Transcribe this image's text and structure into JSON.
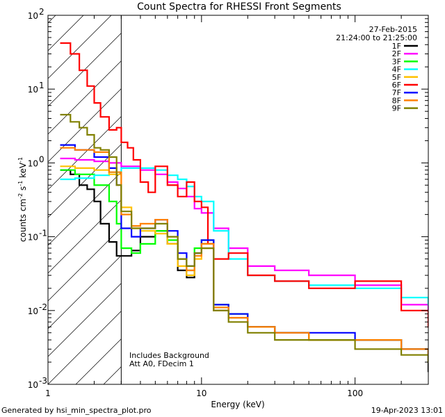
{
  "chart_data": {
    "type": "line",
    "title": "Count Spectra for RHESSI Front Segments",
    "xlabel": "Energy (keV)",
    "ylabel": {
      "base": "counts cm",
      "exp1": "-2",
      "mid": " s",
      "exp2": "-1",
      "unit": " keV",
      "exp3": "-1"
    },
    "xscale": "log",
    "yscale": "log",
    "xlim": [
      1,
      300
    ],
    "ylim": [
      0.001,
      100
    ],
    "x_major_ticks": [
      {
        "v": 1,
        "label": "1"
      },
      {
        "v": 10,
        "label": "10"
      },
      {
        "v": 100,
        "label": "100"
      }
    ],
    "y_major_ticks": [
      {
        "v": 0.001,
        "base": "10",
        "exp": "-3"
      },
      {
        "v": 0.01,
        "base": "10",
        "exp": "-2"
      },
      {
        "v": 0.1,
        "base": "10",
        "exp": "-1"
      },
      {
        "v": 1,
        "base": "10",
        "exp": "0"
      },
      {
        "v": 10,
        "base": "10",
        "exp": "1"
      },
      {
        "v": 100,
        "base": "10",
        "exp": "2"
      }
    ],
    "hatch_region_kev": [
      1,
      3
    ],
    "date": "27-Feb-2015",
    "time_range": "21:24:00 to 21:25:00",
    "annotations": [
      "Includes Background",
      "Att A0, FDecim 1"
    ],
    "legend_position": "top-right",
    "series": [
      {
        "name": "1F",
        "color": "#000000",
        "x": [
          1.2,
          1.4,
          1.6,
          1.8,
          2.0,
          2.2,
          2.5,
          2.8,
          3.0,
          3.5,
          4,
          5,
          6,
          7,
          8,
          9,
          10,
          12,
          15,
          20,
          30,
          50,
          100,
          200,
          300
        ],
        "y": [
          0.8,
          0.7,
          0.5,
          0.44,
          0.3,
          0.15,
          0.085,
          0.055,
          0.055,
          0.065,
          0.1,
          0.12,
          0.08,
          0.035,
          0.028,
          0.06,
          0.08,
          0.01,
          0.008,
          0.006,
          0.005,
          0.004,
          0.004,
          0.003,
          0.0015
        ]
      },
      {
        "name": "2F",
        "color": "#ff00ff",
        "x": [
          1.2,
          1.5,
          2.0,
          2.5,
          3.0,
          4,
          5,
          6,
          7,
          8,
          9,
          10,
          12,
          15,
          20,
          30,
          50,
          100,
          200,
          300
        ],
        "y": [
          1.15,
          1.1,
          1.05,
          1.0,
          0.9,
          0.8,
          0.7,
          0.55,
          0.45,
          0.35,
          0.24,
          0.21,
          0.13,
          0.07,
          0.04,
          0.035,
          0.03,
          0.022,
          0.012,
          0.008
        ]
      },
      {
        "name": "3F",
        "color": "#00ff00",
        "x": [
          1.2,
          1.5,
          2.0,
          2.5,
          2.8,
          3.0,
          3.5,
          4,
          5,
          6,
          7,
          8,
          9,
          10,
          12,
          15,
          20,
          30,
          50,
          100,
          200,
          300
        ],
        "y": [
          0.8,
          0.7,
          0.5,
          0.3,
          0.15,
          0.07,
          0.06,
          0.08,
          0.12,
          0.09,
          0.05,
          0.035,
          0.07,
          0.09,
          0.012,
          0.009,
          0.006,
          0.005,
          0.004,
          0.004,
          0.003,
          0.002
        ]
      },
      {
        "name": "4F",
        "color": "#00ffff",
        "x": [
          1.2,
          1.5,
          2.0,
          2.5,
          3.0,
          4,
          5,
          6,
          7,
          8,
          9,
          10,
          12,
          15,
          20,
          30,
          50,
          100,
          200,
          300
        ],
        "y": [
          0.6,
          0.62,
          0.68,
          0.75,
          0.85,
          0.85,
          0.8,
          0.68,
          0.6,
          0.48,
          0.35,
          0.3,
          0.12,
          0.05,
          0.03,
          0.025,
          0.022,
          0.02,
          0.015,
          0.012
        ]
      },
      {
        "name": "5F",
        "color": "#ffc000",
        "x": [
          1.2,
          1.5,
          2.0,
          2.5,
          3.0,
          3.5,
          4,
          5,
          6,
          7,
          8,
          9,
          10,
          12,
          15,
          20,
          30,
          50,
          100,
          200,
          300
        ],
        "y": [
          0.9,
          0.85,
          0.8,
          0.7,
          0.25,
          0.13,
          0.12,
          0.11,
          0.08,
          0.04,
          0.03,
          0.05,
          0.07,
          0.01,
          0.008,
          0.006,
          0.005,
          0.004,
          0.004,
          0.003,
          0.002
        ]
      },
      {
        "name": "6F",
        "color": "#ff0000",
        "x": [
          1.2,
          1.4,
          1.6,
          1.8,
          2.0,
          2.2,
          2.5,
          2.8,
          3.0,
          3.3,
          3.6,
          4,
          4.5,
          5,
          6,
          7,
          8,
          9,
          10,
          11,
          12,
          15,
          20,
          30,
          50,
          100,
          200,
          300
        ],
        "y": [
          42,
          30,
          18,
          11,
          6.5,
          4.2,
          2.8,
          3.0,
          1.9,
          1.6,
          1.1,
          0.55,
          0.4,
          0.9,
          0.5,
          0.35,
          0.55,
          0.3,
          0.25,
          0.08,
          0.05,
          0.06,
          0.03,
          0.025,
          0.02,
          0.025,
          0.01,
          0.006
        ]
      },
      {
        "name": "7F",
        "color": "#0000ff",
        "x": [
          1.2,
          1.5,
          2.0,
          2.5,
          2.8,
          3.0,
          3.5,
          4,
          5,
          6,
          7,
          8,
          9,
          10,
          12,
          15,
          20,
          30,
          50,
          100,
          200,
          300
        ],
        "y": [
          1.75,
          1.5,
          1.2,
          0.85,
          0.5,
          0.13,
          0.1,
          0.13,
          0.17,
          0.12,
          0.06,
          0.04,
          0.06,
          0.09,
          0.012,
          0.009,
          0.006,
          0.005,
          0.005,
          0.004,
          0.003,
          0.002
        ]
      },
      {
        "name": "8F",
        "color": "#ff8000",
        "x": [
          1.2,
          1.5,
          2.0,
          2.5,
          3.0,
          3.5,
          4,
          5,
          6,
          7,
          8,
          9,
          10,
          12,
          15,
          20,
          30,
          50,
          100,
          200,
          300
        ],
        "y": [
          1.6,
          1.5,
          1.4,
          0.75,
          0.2,
          0.14,
          0.15,
          0.17,
          0.1,
          0.05,
          0.035,
          0.055,
          0.08,
          0.011,
          0.008,
          0.006,
          0.005,
          0.004,
          0.004,
          0.003,
          0.002
        ]
      },
      {
        "name": "9F",
        "color": "#808000",
        "x": [
          1.2,
          1.4,
          1.6,
          1.8,
          2.0,
          2.2,
          2.5,
          2.8,
          3.0,
          3.5,
          4,
          5,
          6,
          7,
          8,
          9,
          10,
          12,
          15,
          20,
          30,
          50,
          100,
          200,
          300
        ],
        "y": [
          4.5,
          3.6,
          3.0,
          2.4,
          1.6,
          1.5,
          1.2,
          0.5,
          0.22,
          0.13,
          0.13,
          0.15,
          0.1,
          0.05,
          0.04,
          0.06,
          0.07,
          0.01,
          0.007,
          0.005,
          0.004,
          0.004,
          0.003,
          0.0025,
          0.002
        ]
      }
    ]
  },
  "footer": {
    "left": "Generated by hsi_min_spectra_plot.pro",
    "right": "19-Apr-2023 13:01"
  }
}
